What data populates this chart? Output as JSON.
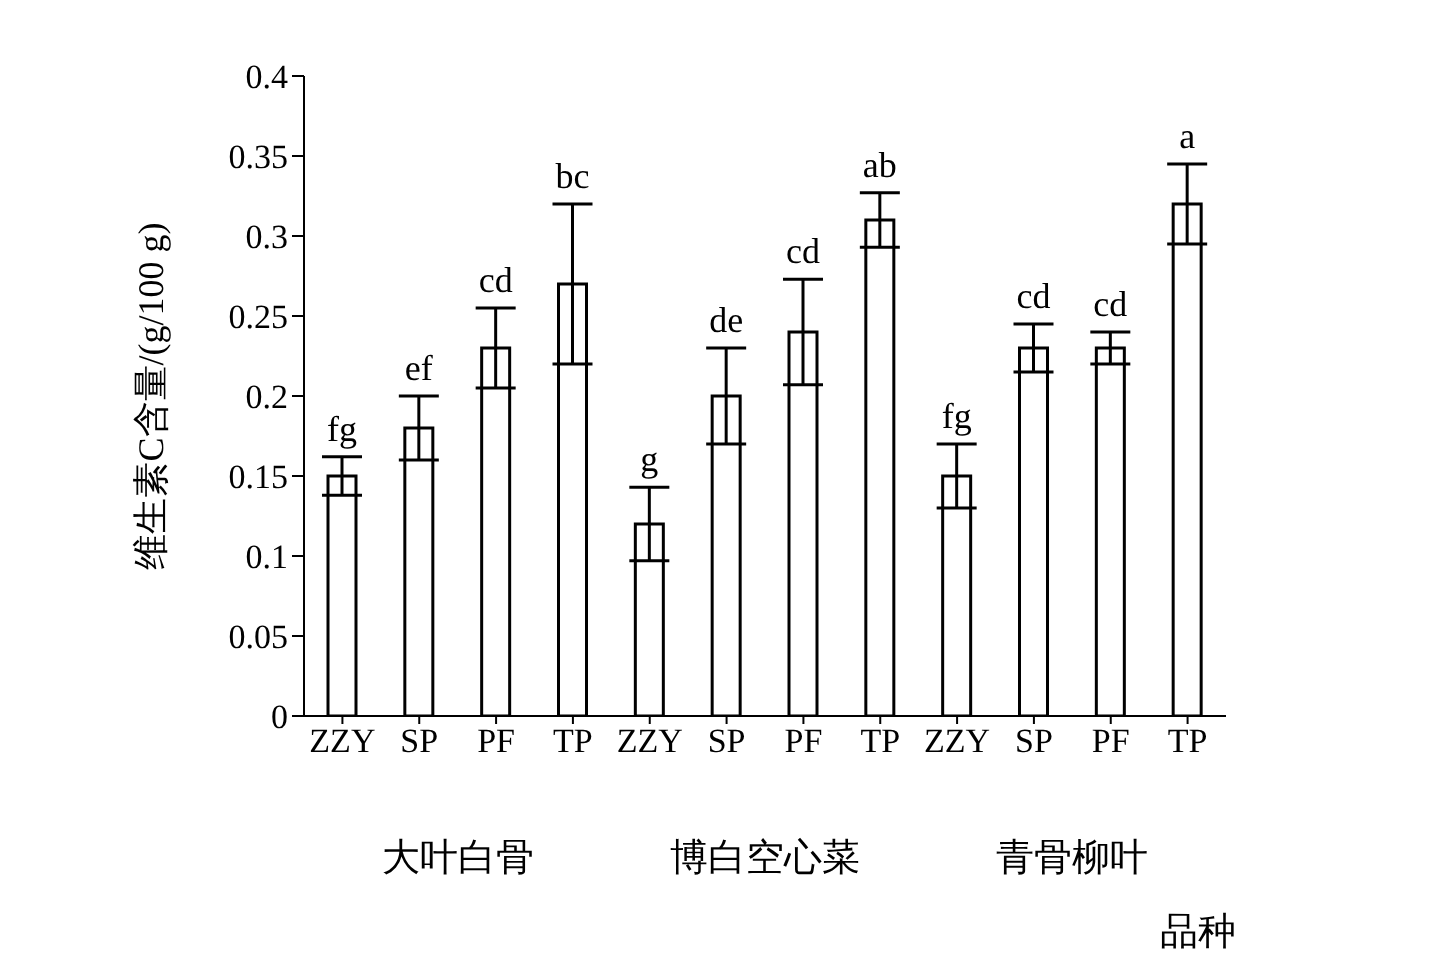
{
  "chart_data": {
    "type": "bar",
    "ylabel": "维生素C含量/(g/100 g)",
    "xlabel": "品种",
    "categories": [
      "ZZY",
      "SP",
      "PF",
      "TP",
      "ZZY",
      "SP",
      "PF",
      "TP",
      "ZZY",
      "SP",
      "PF",
      "TP"
    ],
    "values": [
      0.15,
      0.18,
      0.23,
      0.27,
      0.12,
      0.2,
      0.24,
      0.31,
      0.15,
      0.23,
      0.23,
      0.32
    ],
    "errors": [
      0.012,
      0.02,
      0.025,
      0.05,
      0.023,
      0.03,
      0.033,
      0.017,
      0.02,
      0.015,
      0.01,
      0.025
    ],
    "value_labels": [
      "fg",
      "ef",
      "cd",
      "bc",
      "g",
      "de",
      "cd",
      "ab",
      "fg",
      "cd",
      "cd",
      "a"
    ],
    "color": "#ffffff",
    "annotations": [
      "大叶白骨",
      "博白空心菜",
      "青骨柳叶"
    ],
    "ylim": [
      0,
      0.4
    ],
    "yticks": [
      0,
      0.05,
      0.1,
      0.15,
      0.2,
      0.25,
      0.3,
      0.35,
      0.4
    ],
    "grid": false,
    "legend": false
  }
}
